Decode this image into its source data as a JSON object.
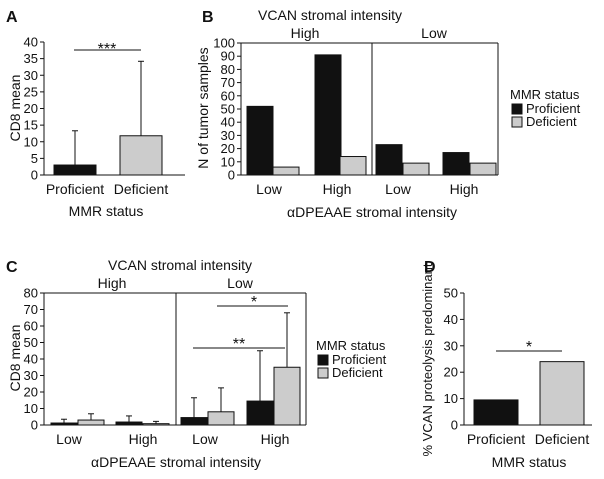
{
  "colors": {
    "proficient": "#111111",
    "deficient": "#cccccc"
  },
  "chart_data": [
    {
      "panel": "A",
      "type": "bar",
      "categories": [
        "Proficient",
        "Deficient"
      ],
      "values": [
        3,
        11.8
      ],
      "errors": [
        10.3,
        22.4
      ],
      "ylabel": "CD8 mean",
      "xlabel": "MMR status",
      "ylim": [
        0,
        40
      ],
      "yticks": [
        "0",
        "5",
        "10",
        "15",
        "20",
        "25",
        "30",
        "35",
        "40"
      ],
      "significance": [
        {
          "label": "***",
          "between": [
            "Proficient",
            "Deficient"
          ]
        }
      ]
    },
    {
      "panel": "B",
      "type": "bar",
      "title": "VCAN stromal intensity",
      "groups": [
        "High",
        "Low"
      ],
      "categories": [
        "Low",
        "High",
        "Low",
        "High"
      ],
      "series": [
        {
          "name": "Proficient",
          "values": [
            52,
            91,
            23,
            17
          ]
        },
        {
          "name": "Deficient",
          "values": [
            6,
            14,
            9,
            9
          ]
        }
      ],
      "ylabel": "N of tumor samples",
      "xlabel": "αDPEAAE stromal intensity",
      "ylim": [
        0,
        100
      ],
      "yticks": [
        "0",
        "10",
        "20",
        "30",
        "40",
        "50",
        "60",
        "70",
        "80",
        "90",
        "100"
      ],
      "legend": {
        "title": "MMR status",
        "position": "right"
      }
    },
    {
      "panel": "C",
      "type": "bar",
      "title": "VCAN stromal intensity",
      "groups": [
        "High",
        "Low"
      ],
      "categories": [
        "Low",
        "High",
        "Low",
        "High"
      ],
      "series": [
        {
          "name": "Proficient",
          "values": [
            1.2,
            1.8,
            4.5,
            14.5
          ],
          "errors": [
            2.3,
            3.7,
            12,
            30.5
          ]
        },
        {
          "name": "Deficient",
          "values": [
            3,
            0.8,
            8,
            35
          ],
          "errors": [
            3.8,
            1.4,
            14.5,
            33
          ]
        }
      ],
      "ylabel": "CD8 mean",
      "xlabel": "αDPEAAE stromal intensity",
      "ylim": [
        0,
        80
      ],
      "yticks": [
        "0",
        "10",
        "20",
        "30",
        "40",
        "50",
        "60",
        "70",
        "80"
      ],
      "legend": {
        "title": "MMR status",
        "position": "right"
      },
      "significance": [
        {
          "label": "**",
          "between": [
            "Low / Low",
            "Low / High"
          ]
        },
        {
          "label": "*",
          "between": [
            "Low / Low deficient",
            "Low / High deficient"
          ]
        }
      ]
    },
    {
      "panel": "D",
      "type": "bar",
      "categories": [
        "Proficient",
        "Deficient"
      ],
      "values": [
        9.5,
        24
      ],
      "ylabel": "% VCAN proteolysis predominant",
      "xlabel": "MMR status",
      "ylim": [
        0,
        50
      ],
      "yticks": [
        "0",
        "10",
        "20",
        "30",
        "40",
        "50"
      ],
      "significance": [
        {
          "label": "*",
          "between": [
            "Proficient",
            "Deficient"
          ]
        }
      ]
    }
  ]
}
